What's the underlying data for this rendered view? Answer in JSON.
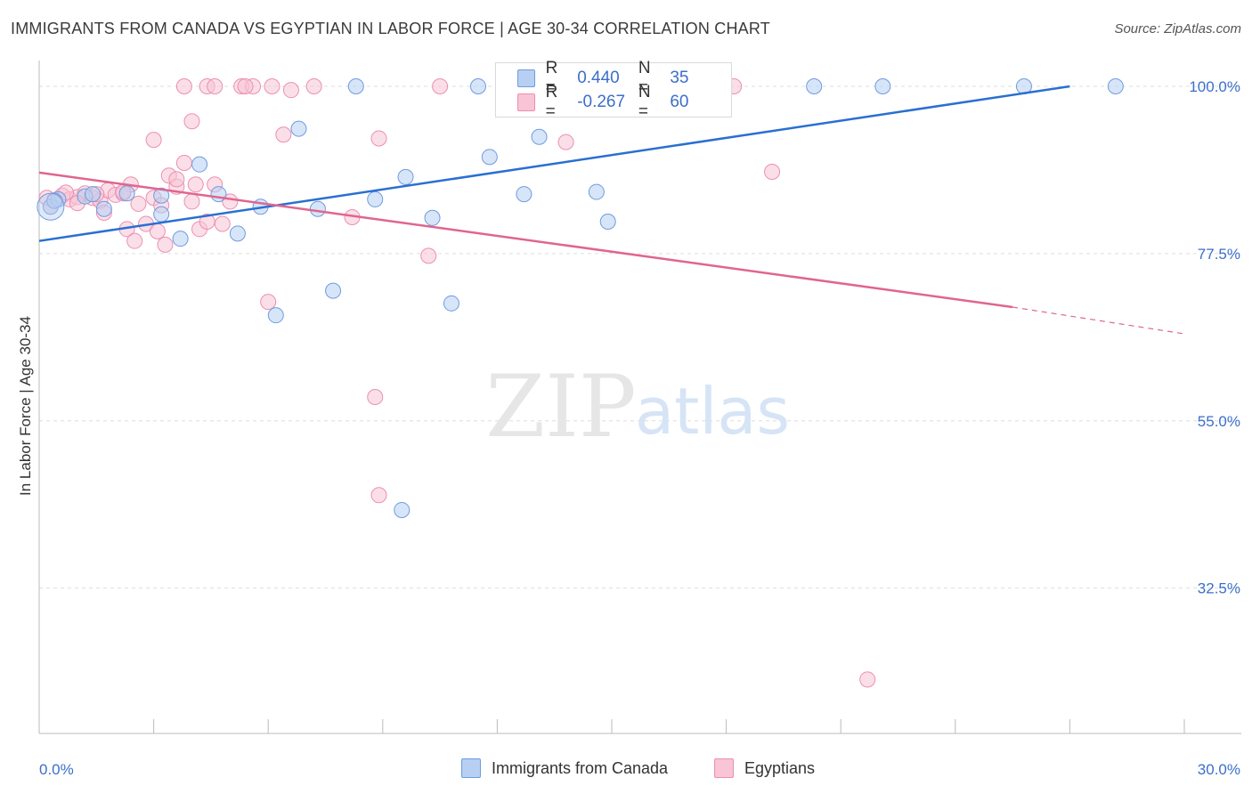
{
  "title": "IMMIGRANTS FROM CANADA VS EGYPTIAN IN LABOR FORCE | AGE 30-34 CORRELATION CHART",
  "source": "Source: ZipAtlas.com",
  "watermark": {
    "zip": "ZIP",
    "atlas": "atlas"
  },
  "legend": {
    "r_label": "R =",
    "n_label": "N =",
    "series1": {
      "r": "0.440",
      "n": "35"
    },
    "series2": {
      "r": "-0.267",
      "n": "60"
    }
  },
  "bottom_legend": {
    "series1": "Immigrants from Canada",
    "series2": "Egyptians"
  },
  "colors": {
    "blue_fill": "#b7cff2",
    "blue_stroke": "#6f9be0",
    "blue_line": "#2a6fd1",
    "pink_fill": "#f8c4d6",
    "pink_stroke": "#ec8fb0",
    "pink_line": "#e0658f",
    "tick_text": "#3b6fc9",
    "grid": "#dddddd"
  },
  "chart_data": {
    "type": "scatter",
    "title": "IMMIGRANTS FROM CANADA VS EGYPTIAN IN LABOR FORCE | AGE 30-34 CORRELATION CHART",
    "xlabel": "",
    "ylabel": "In Labor Force | Age 30-34",
    "xlim": [
      0,
      30
    ],
    "ylim": [
      12,
      102
    ],
    "x_tick_labels": [
      "0.0%",
      "30.0%"
    ],
    "y_ticks": [
      100,
      77.5,
      55,
      32.5
    ],
    "y_tick_labels": [
      "100.0%",
      "77.5%",
      "55.0%",
      "32.5%"
    ],
    "grid": true,
    "series": [
      {
        "name": "Immigrants from Canada",
        "color": "#6f9be0",
        "r": 0.44,
        "n": 35,
        "trend": {
          "x": [
            0,
            27
          ],
          "y": [
            79.2,
            100.0
          ]
        },
        "points": [
          [
            0.3,
            83.8
          ],
          [
            0.5,
            84.8
          ],
          [
            1.2,
            85.2
          ],
          [
            1.4,
            85.5
          ],
          [
            1.7,
            83.5
          ],
          [
            2.3,
            85.6
          ],
          [
            3.2,
            85.3
          ],
          [
            3.2,
            82.8
          ],
          [
            3.7,
            79.5
          ],
          [
            4.2,
            89.5
          ],
          [
            4.7,
            85.5
          ],
          [
            5.2,
            80.2
          ],
          [
            5.8,
            83.8
          ],
          [
            6.2,
            69.2
          ],
          [
            6.8,
            94.3
          ],
          [
            7.3,
            83.5
          ],
          [
            7.7,
            72.5
          ],
          [
            8.3,
            100.0
          ],
          [
            8.8,
            84.8
          ],
          [
            9.5,
            43.0
          ],
          [
            9.6,
            87.8
          ],
          [
            10.3,
            82.3
          ],
          [
            10.8,
            70.8
          ],
          [
            11.5,
            100.0
          ],
          [
            11.8,
            90.5
          ],
          [
            12.7,
            85.5
          ],
          [
            13.1,
            93.2
          ],
          [
            14.6,
            85.8
          ],
          [
            14.9,
            81.8
          ],
          [
            16.2,
            100.0
          ],
          [
            20.3,
            100.0
          ],
          [
            22.1,
            100.0
          ],
          [
            25.8,
            100.0
          ],
          [
            28.2,
            100.0
          ],
          [
            0.4,
            84.6
          ]
        ]
      },
      {
        "name": "Egyptians",
        "color": "#ec8fb0",
        "r": -0.267,
        "n": 60,
        "trend": {
          "x": [
            0,
            25.5
          ],
          "y": [
            88.4,
            70.3
          ]
        },
        "trend_dashed": {
          "x": [
            25.5,
            30
          ],
          "y": [
            70.3,
            66.7
          ]
        },
        "points": [
          [
            0.2,
            85.0
          ],
          [
            0.4,
            84.7
          ],
          [
            0.6,
            85.3
          ],
          [
            0.8,
            84.8
          ],
          [
            1.0,
            85.1
          ],
          [
            1.2,
            85.6
          ],
          [
            1.4,
            85.0
          ],
          [
            1.6,
            84.6
          ],
          [
            1.8,
            86.0
          ],
          [
            2.0,
            85.4
          ],
          [
            2.2,
            85.6
          ],
          [
            2.4,
            86.8
          ],
          [
            2.6,
            84.2
          ],
          [
            2.8,
            81.5
          ],
          [
            3.0,
            85.0
          ],
          [
            3.2,
            84.0
          ],
          [
            3.4,
            88.0
          ],
          [
            3.6,
            86.5
          ],
          [
            3.8,
            89.7
          ],
          [
            4.0,
            84.5
          ],
          [
            4.2,
            80.8
          ],
          [
            4.4,
            81.8
          ],
          [
            4.6,
            86.8
          ],
          [
            4.8,
            81.5
          ],
          [
            5.0,
            84.5
          ],
          [
            1.7,
            83.0
          ],
          [
            2.3,
            80.8
          ],
          [
            2.5,
            79.2
          ],
          [
            3.1,
            80.5
          ],
          [
            3.3,
            78.7
          ],
          [
            3.0,
            92.8
          ],
          [
            4.0,
            95.3
          ],
          [
            3.8,
            100.0
          ],
          [
            4.4,
            100.0
          ],
          [
            4.6,
            100.0
          ],
          [
            5.3,
            100.0
          ],
          [
            5.6,
            100.0
          ],
          [
            6.1,
            100.0
          ],
          [
            6.4,
            93.5
          ],
          [
            6.6,
            99.5
          ],
          [
            7.2,
            100.0
          ],
          [
            8.2,
            82.4
          ],
          [
            8.9,
            93.0
          ],
          [
            8.8,
            58.2
          ],
          [
            8.9,
            45.0
          ],
          [
            10.2,
            77.2
          ],
          [
            10.5,
            100.0
          ],
          [
            13.8,
            92.5
          ],
          [
            18.2,
            100.0
          ],
          [
            19.2,
            88.5
          ],
          [
            21.7,
            20.2
          ],
          [
            6.0,
            71.0
          ],
          [
            1.0,
            84.3
          ],
          [
            0.7,
            85.7
          ],
          [
            5.4,
            100.0
          ],
          [
            4.1,
            86.8
          ],
          [
            2.2,
            85.8
          ],
          [
            1.5,
            85.5
          ],
          [
            0.3,
            83.8
          ],
          [
            3.6,
            87.5
          ]
        ]
      }
    ]
  }
}
